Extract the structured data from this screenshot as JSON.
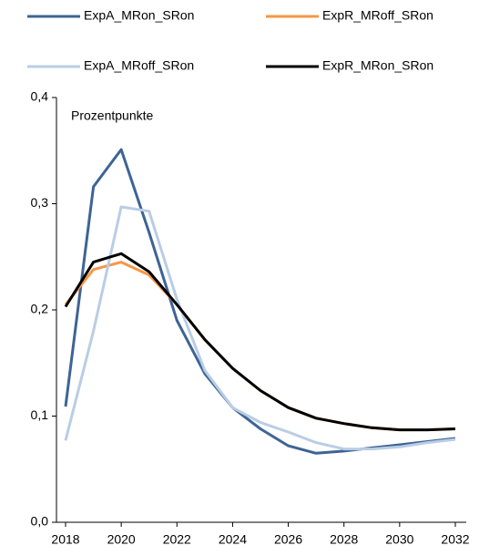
{
  "chart_data": {
    "type": "line",
    "annotation": "Prozentpunkte",
    "x": [
      2018,
      2019,
      2020,
      2021,
      2022,
      2023,
      2024,
      2025,
      2026,
      2027,
      2028,
      2029,
      2030,
      2031,
      2032
    ],
    "series": [
      {
        "name": "ExpA_MRon_SRon",
        "color": "#3d6494",
        "values": [
          0.109,
          0.316,
          0.351,
          0.273,
          0.19,
          0.14,
          0.108,
          0.088,
          0.072,
          0.065,
          0.067,
          0.07,
          0.073,
          0.076,
          0.079
        ]
      },
      {
        "name": "ExpR_MRoff_SRon",
        "color": "#f79646",
        "values": [
          0.205,
          0.238,
          0.245,
          0.233,
          0.205,
          0.172,
          0.145,
          0.124,
          0.108,
          0.098,
          0.093,
          0.089,
          0.087,
          0.087,
          0.088
        ]
      },
      {
        "name": "ExpA_MRoff_SRon",
        "color": "#b9cde5",
        "values": [
          0.077,
          0.18,
          0.297,
          0.293,
          0.21,
          0.143,
          0.108,
          0.094,
          0.085,
          0.075,
          0.069,
          0.069,
          0.071,
          0.075,
          0.078
        ]
      },
      {
        "name": "ExpR_MRon_SRon",
        "color": "#000000",
        "values": [
          0.203,
          0.245,
          0.253,
          0.236,
          0.205,
          0.172,
          0.145,
          0.124,
          0.108,
          0.098,
          0.093,
          0.089,
          0.087,
          0.087,
          0.088
        ]
      }
    ],
    "xlim": [
      2018,
      2032
    ],
    "xticks": [
      2018,
      2020,
      2022,
      2024,
      2026,
      2028,
      2030,
      2032
    ],
    "ylim": [
      0,
      0.4
    ],
    "yticks": [
      {
        "value": 0,
        "label": "0,0"
      },
      {
        "value": 0.1,
        "label": "0,1"
      },
      {
        "value": 0.2,
        "label": "0,2"
      },
      {
        "value": 0.3,
        "label": "0,3"
      },
      {
        "value": 0.4,
        "label": "0,4"
      }
    ],
    "grid": false
  }
}
